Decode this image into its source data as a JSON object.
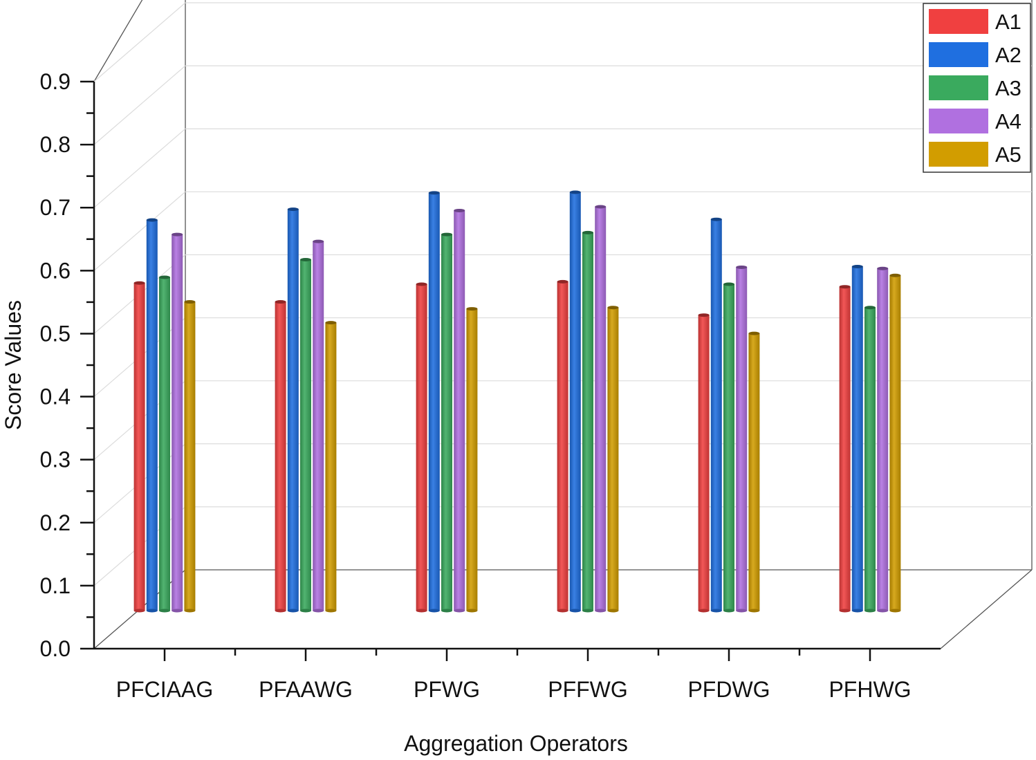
{
  "chart_data": {
    "type": "bar",
    "style": "3d-grouped",
    "title": "",
    "xlabel": "Aggregation Operators",
    "ylabel": "Score Values",
    "ylim": [
      0,
      0.9
    ],
    "yticks": [
      "0.0",
      "0.1",
      "0.2",
      "0.3",
      "0.4",
      "0.5",
      "0.6",
      "0.7",
      "0.8",
      "0.9"
    ],
    "grid": true,
    "legend_position": "top-right",
    "categories": [
      "PFCIAAG",
      "PFAAWG",
      "PFWG",
      "PFFWG",
      "PFDWG",
      "PFHWG"
    ],
    "series": [
      {
        "name": "A1",
        "color": "#f04040",
        "values": [
          0.52,
          0.49,
          0.518,
          0.522,
          0.469,
          0.514
        ]
      },
      {
        "name": "A2",
        "color": "#1f6fe0",
        "values": [
          0.62,
          0.637,
          0.663,
          0.664,
          0.621,
          0.546
        ]
      },
      {
        "name": "A3",
        "color": "#3aaa5e",
        "values": [
          0.529,
          0.557,
          0.597,
          0.6,
          0.518,
          0.481
        ]
      },
      {
        "name": "A4",
        "color": "#b070e0",
        "values": [
          0.597,
          0.586,
          0.635,
          0.641,
          0.545,
          0.543
        ]
      },
      {
        "name": "A5",
        "color": "#d29d00",
        "values": [
          0.49,
          0.457,
          0.479,
          0.481,
          0.44,
          0.532
        ]
      }
    ]
  }
}
